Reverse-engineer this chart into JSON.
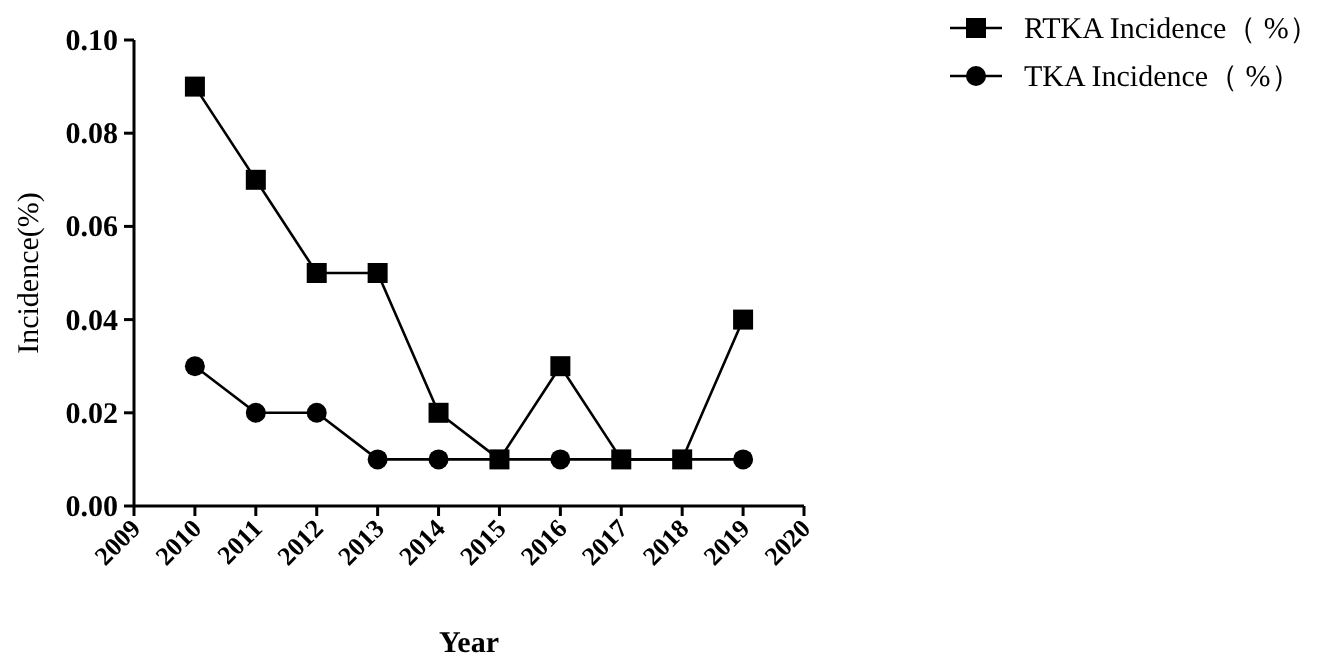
{
  "chart_data": {
    "type": "line",
    "xlabel": "Year",
    "ylabel": "Incidence(%)",
    "x": [
      2010,
      2011,
      2012,
      2013,
      2014,
      2015,
      2016,
      2017,
      2018,
      2019
    ],
    "series": [
      {
        "name": "RTKA Incidence（ %）",
        "color": "#000000",
        "marker": "square",
        "values": [
          0.09,
          0.07,
          0.05,
          0.05,
          0.02,
          0.01,
          0.03,
          0.01,
          0.01,
          0.04
        ]
      },
      {
        "name": "TKA Incidence（ %）",
        "color": "#000000",
        "marker": "circle",
        "values": [
          0.03,
          0.02,
          0.02,
          0.01,
          0.01,
          null,
          0.01,
          null,
          null,
          0.01
        ]
      }
    ],
    "xlim": [
      2009,
      2020
    ],
    "xticks": [
      2009,
      2010,
      2011,
      2012,
      2013,
      2014,
      2015,
      2016,
      2017,
      2018,
      2019,
      2020
    ],
    "ylim": [
      0,
      0.1
    ],
    "yticks": [
      {
        "value": 0,
        "label": "0.00"
      },
      {
        "value": 0.02,
        "label": "0.02"
      },
      {
        "value": 0.04,
        "label": "0.04"
      },
      {
        "value": 0.06,
        "label": "0.06"
      },
      {
        "value": 0.08,
        "label": "0.08"
      },
      {
        "value": 0.1,
        "label": "0.10"
      }
    ],
    "grid": false,
    "legend": "top right",
    "line_style": "solid"
  }
}
